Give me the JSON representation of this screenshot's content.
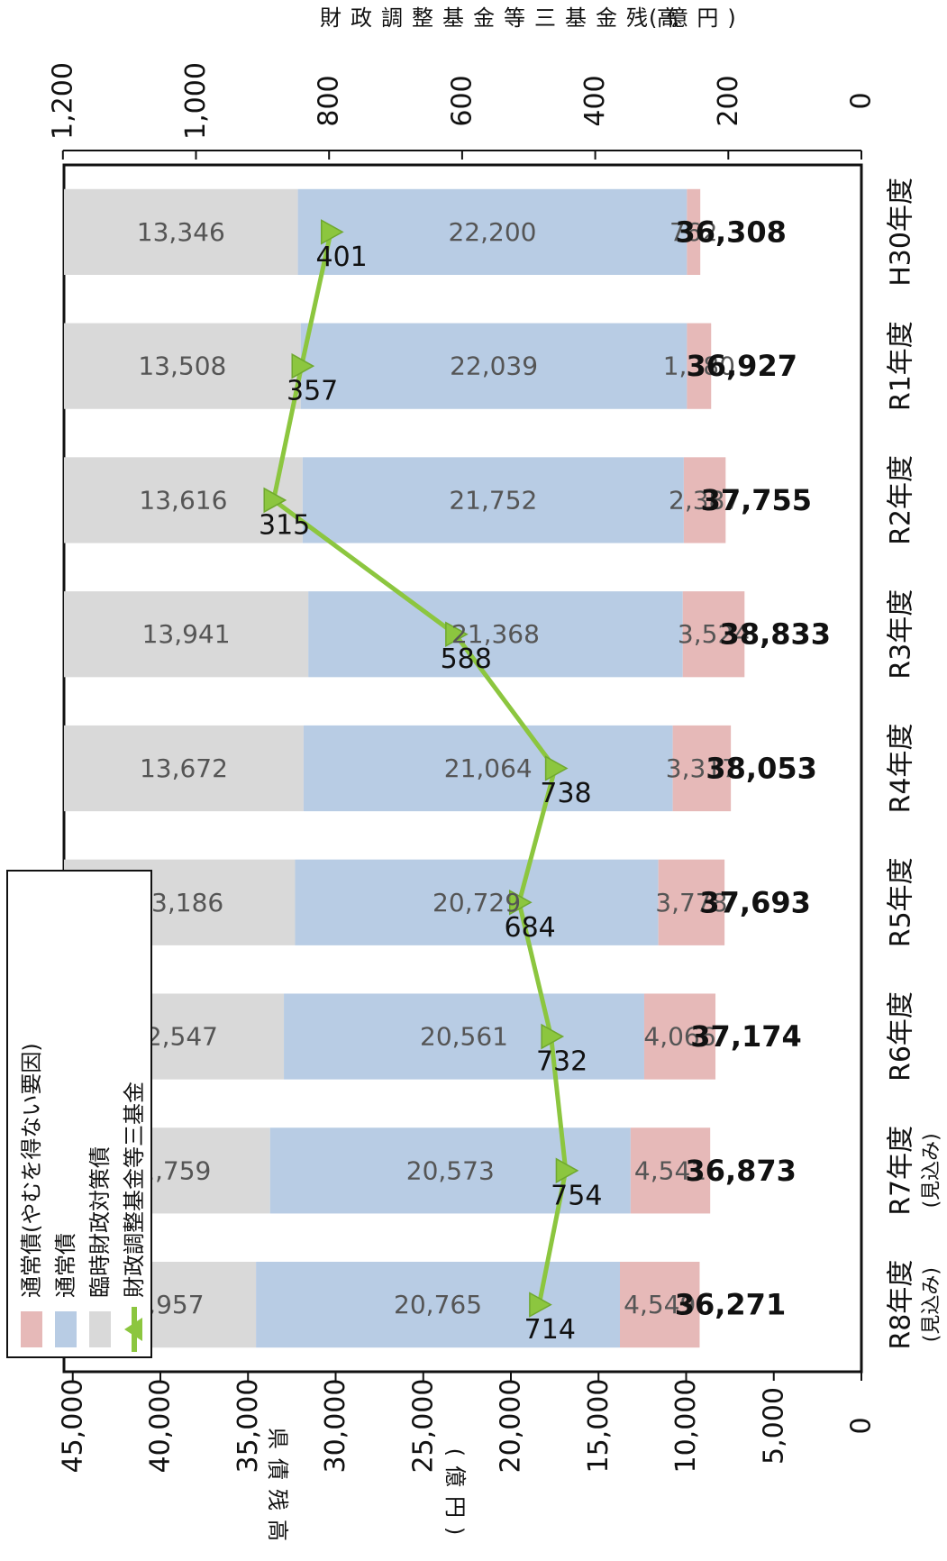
{
  "chart_data": {
    "type": "bar",
    "stacked": true,
    "orientation": "rotated-90-clockwise",
    "categories": [
      {
        "label": "H30年度",
        "sub": ""
      },
      {
        "label": "R1年度",
        "sub": ""
      },
      {
        "label": "R2年度",
        "sub": ""
      },
      {
        "label": "R3年度",
        "sub": ""
      },
      {
        "label": "R4年度",
        "sub": ""
      },
      {
        "label": "R5年度",
        "sub": ""
      },
      {
        "label": "R6年度",
        "sub": ""
      },
      {
        "label": "R7年度",
        "sub": "(見込み)"
      },
      {
        "label": "R8年度",
        "sub": "(見込み)"
      }
    ],
    "series": [
      {
        "name": "臨時財政対策債",
        "color": "#d9d9d9",
        "values": [
          13346,
          13508,
          13616,
          13941,
          13672,
          13186,
          12547,
          11759,
          10957
        ]
      },
      {
        "name": "通常債",
        "color": "#b8cce4",
        "values": [
          22200,
          22039,
          21752,
          21368,
          21064,
          20729,
          20561,
          20573,
          20765
        ]
      },
      {
        "name": "通常債(やむを得ない要因)",
        "color": "#e6b9b8",
        "values": [
          762,
          1380,
          2387,
          3524,
          3317,
          3778,
          4066,
          4541,
          4549
        ]
      }
    ],
    "totals": [
      36308,
      36927,
      37755,
      38833,
      38053,
      37693,
      37174,
      36873,
      36271
    ],
    "line_series": {
      "name": "財政調整基金等三基金",
      "color": "#8cc63f",
      "marker": "triangle",
      "values": [
        401,
        357,
        315,
        588,
        738,
        684,
        732,
        754,
        714
      ]
    },
    "y_left": {
      "title": "県債残高",
      "unit": "(億円)",
      "lim": [
        0,
        45000
      ],
      "ticks": [
        0,
        5000,
        10000,
        15000,
        20000,
        25000,
        30000,
        35000,
        40000,
        45000
      ]
    },
    "y_right": {
      "title": "財政調整基金等三基金残高",
      "unit": "(億円)",
      "lim": [
        0,
        1200
      ],
      "ticks": [
        0,
        200,
        400,
        600,
        800,
        1000,
        1200
      ]
    },
    "legend": {
      "position": "bottom-left",
      "items": [
        {
          "label": "通常債(やむを得ない要因)",
          "color": "#e6b9b8",
          "kind": "box"
        },
        {
          "label": "通常債",
          "color": "#b8cce4",
          "kind": "box"
        },
        {
          "label": "臨時財政対策債",
          "color": "#d9d9d9",
          "kind": "box"
        },
        {
          "label": "財政調整基金等三基金",
          "color": "#8cc63f",
          "kind": "line"
        }
      ]
    },
    "grid": false
  }
}
